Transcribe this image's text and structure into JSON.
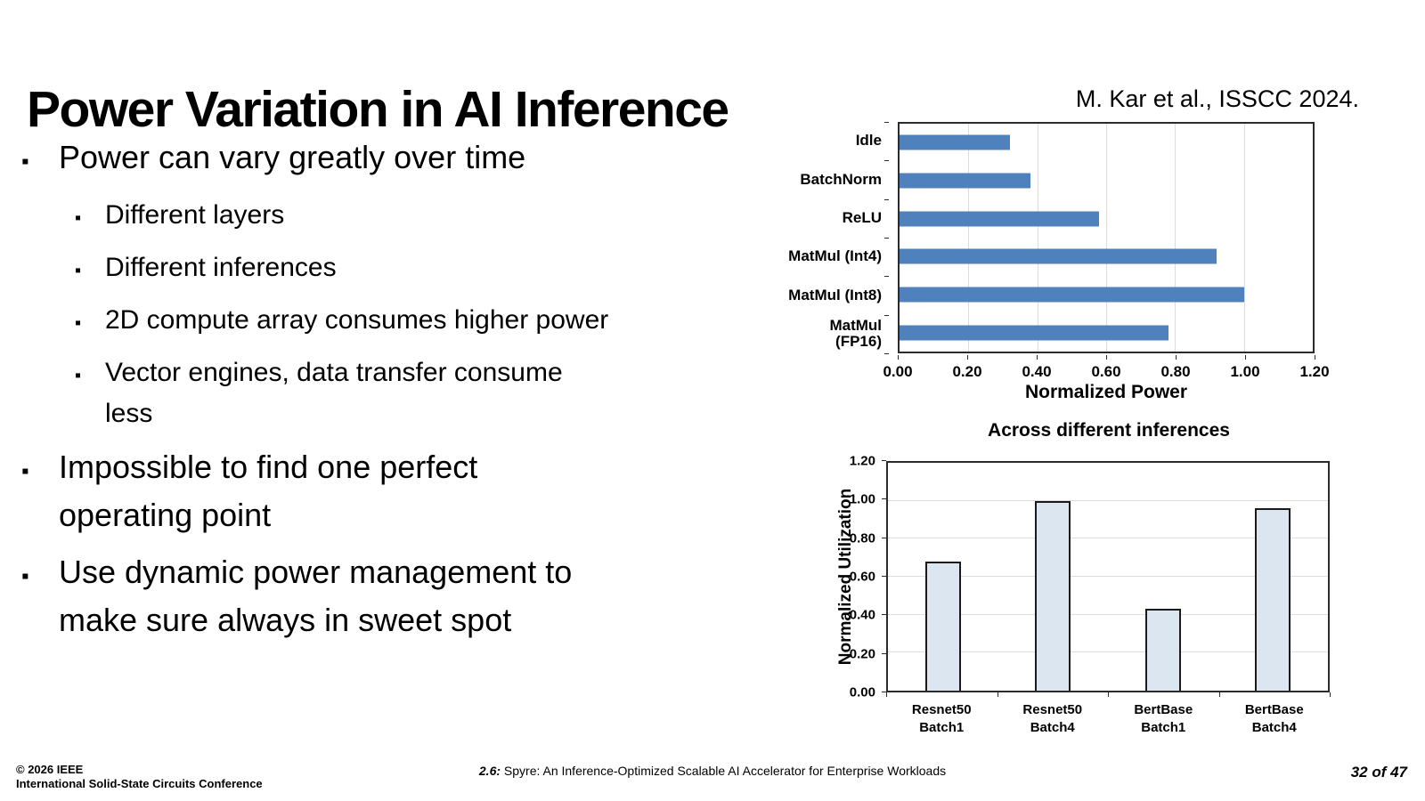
{
  "slide": {
    "title": "Power Variation in AI Inference",
    "attribution": "M. Kar et al., ISSCC 2024.",
    "bullet_glyph": "▪",
    "bullets": [
      {
        "level": 1,
        "text": "Power can vary greatly over time"
      },
      {
        "level": 2,
        "text": "Different layers"
      },
      {
        "level": 2,
        "text": "Different inferences"
      },
      {
        "level": 2,
        "text": "2D compute array consumes higher power"
      },
      {
        "level": 2,
        "text": "Vector engines, data transfer consume\nless"
      },
      {
        "level": 1,
        "text": "Impossible to find one perfect\noperating point"
      },
      {
        "level": 1,
        "text": "Use dynamic power management to\nmake sure always in sweet spot"
      }
    ]
  },
  "chart_data": [
    {
      "type": "bar",
      "orientation": "horizontal",
      "categories": [
        "Idle",
        "BatchNorm",
        "ReLU",
        "MatMul (Int4)",
        "MatMul (Int8)",
        "MatMul\n(FP16)"
      ],
      "values": [
        0.32,
        0.38,
        0.58,
        0.92,
        1.0,
        0.78
      ],
      "xlabel": "Normalized Power",
      "xlim": [
        0,
        1.2
      ],
      "xticks": [
        0,
        0.2,
        0.4,
        0.6,
        0.8,
        1.0,
        1.2
      ],
      "xtick_labels": [
        "0.00",
        "0.20",
        "0.40",
        "0.60",
        "0.80",
        "1.00",
        "1.20"
      ],
      "grid": true,
      "bar_color": "#4f81bd"
    },
    {
      "type": "bar",
      "orientation": "vertical",
      "title": "Across different inferences",
      "categories": [
        "Resnet50\nBatch1",
        "Resnet50\nBatch4",
        "BertBase\nBatch1",
        "BertBase\nBatch4"
      ],
      "values": [
        0.68,
        1.0,
        0.43,
        0.96
      ],
      "ylabel": "Normalized Utilization",
      "ylim": [
        0,
        1.2
      ],
      "yticks": [
        0,
        0.2,
        0.4,
        0.6,
        0.8,
        1.0,
        1.2
      ],
      "ytick_labels": [
        "0.00",
        "0.20",
        "0.40",
        "0.60",
        "0.80",
        "1.00",
        "1.20"
      ],
      "grid": true,
      "bar_fill": "#dce6f1",
      "bar_border": "#1a1a1a"
    }
  ],
  "footer": {
    "left_line1": "© 2026 IEEE",
    "left_line2": "International Solid-State Circuits Conference",
    "center_prefix": "2.6:",
    "center_text": " Spyre: An Inference-Optimized Scalable AI Accelerator for Enterprise Workloads",
    "page": "32 of 47"
  }
}
